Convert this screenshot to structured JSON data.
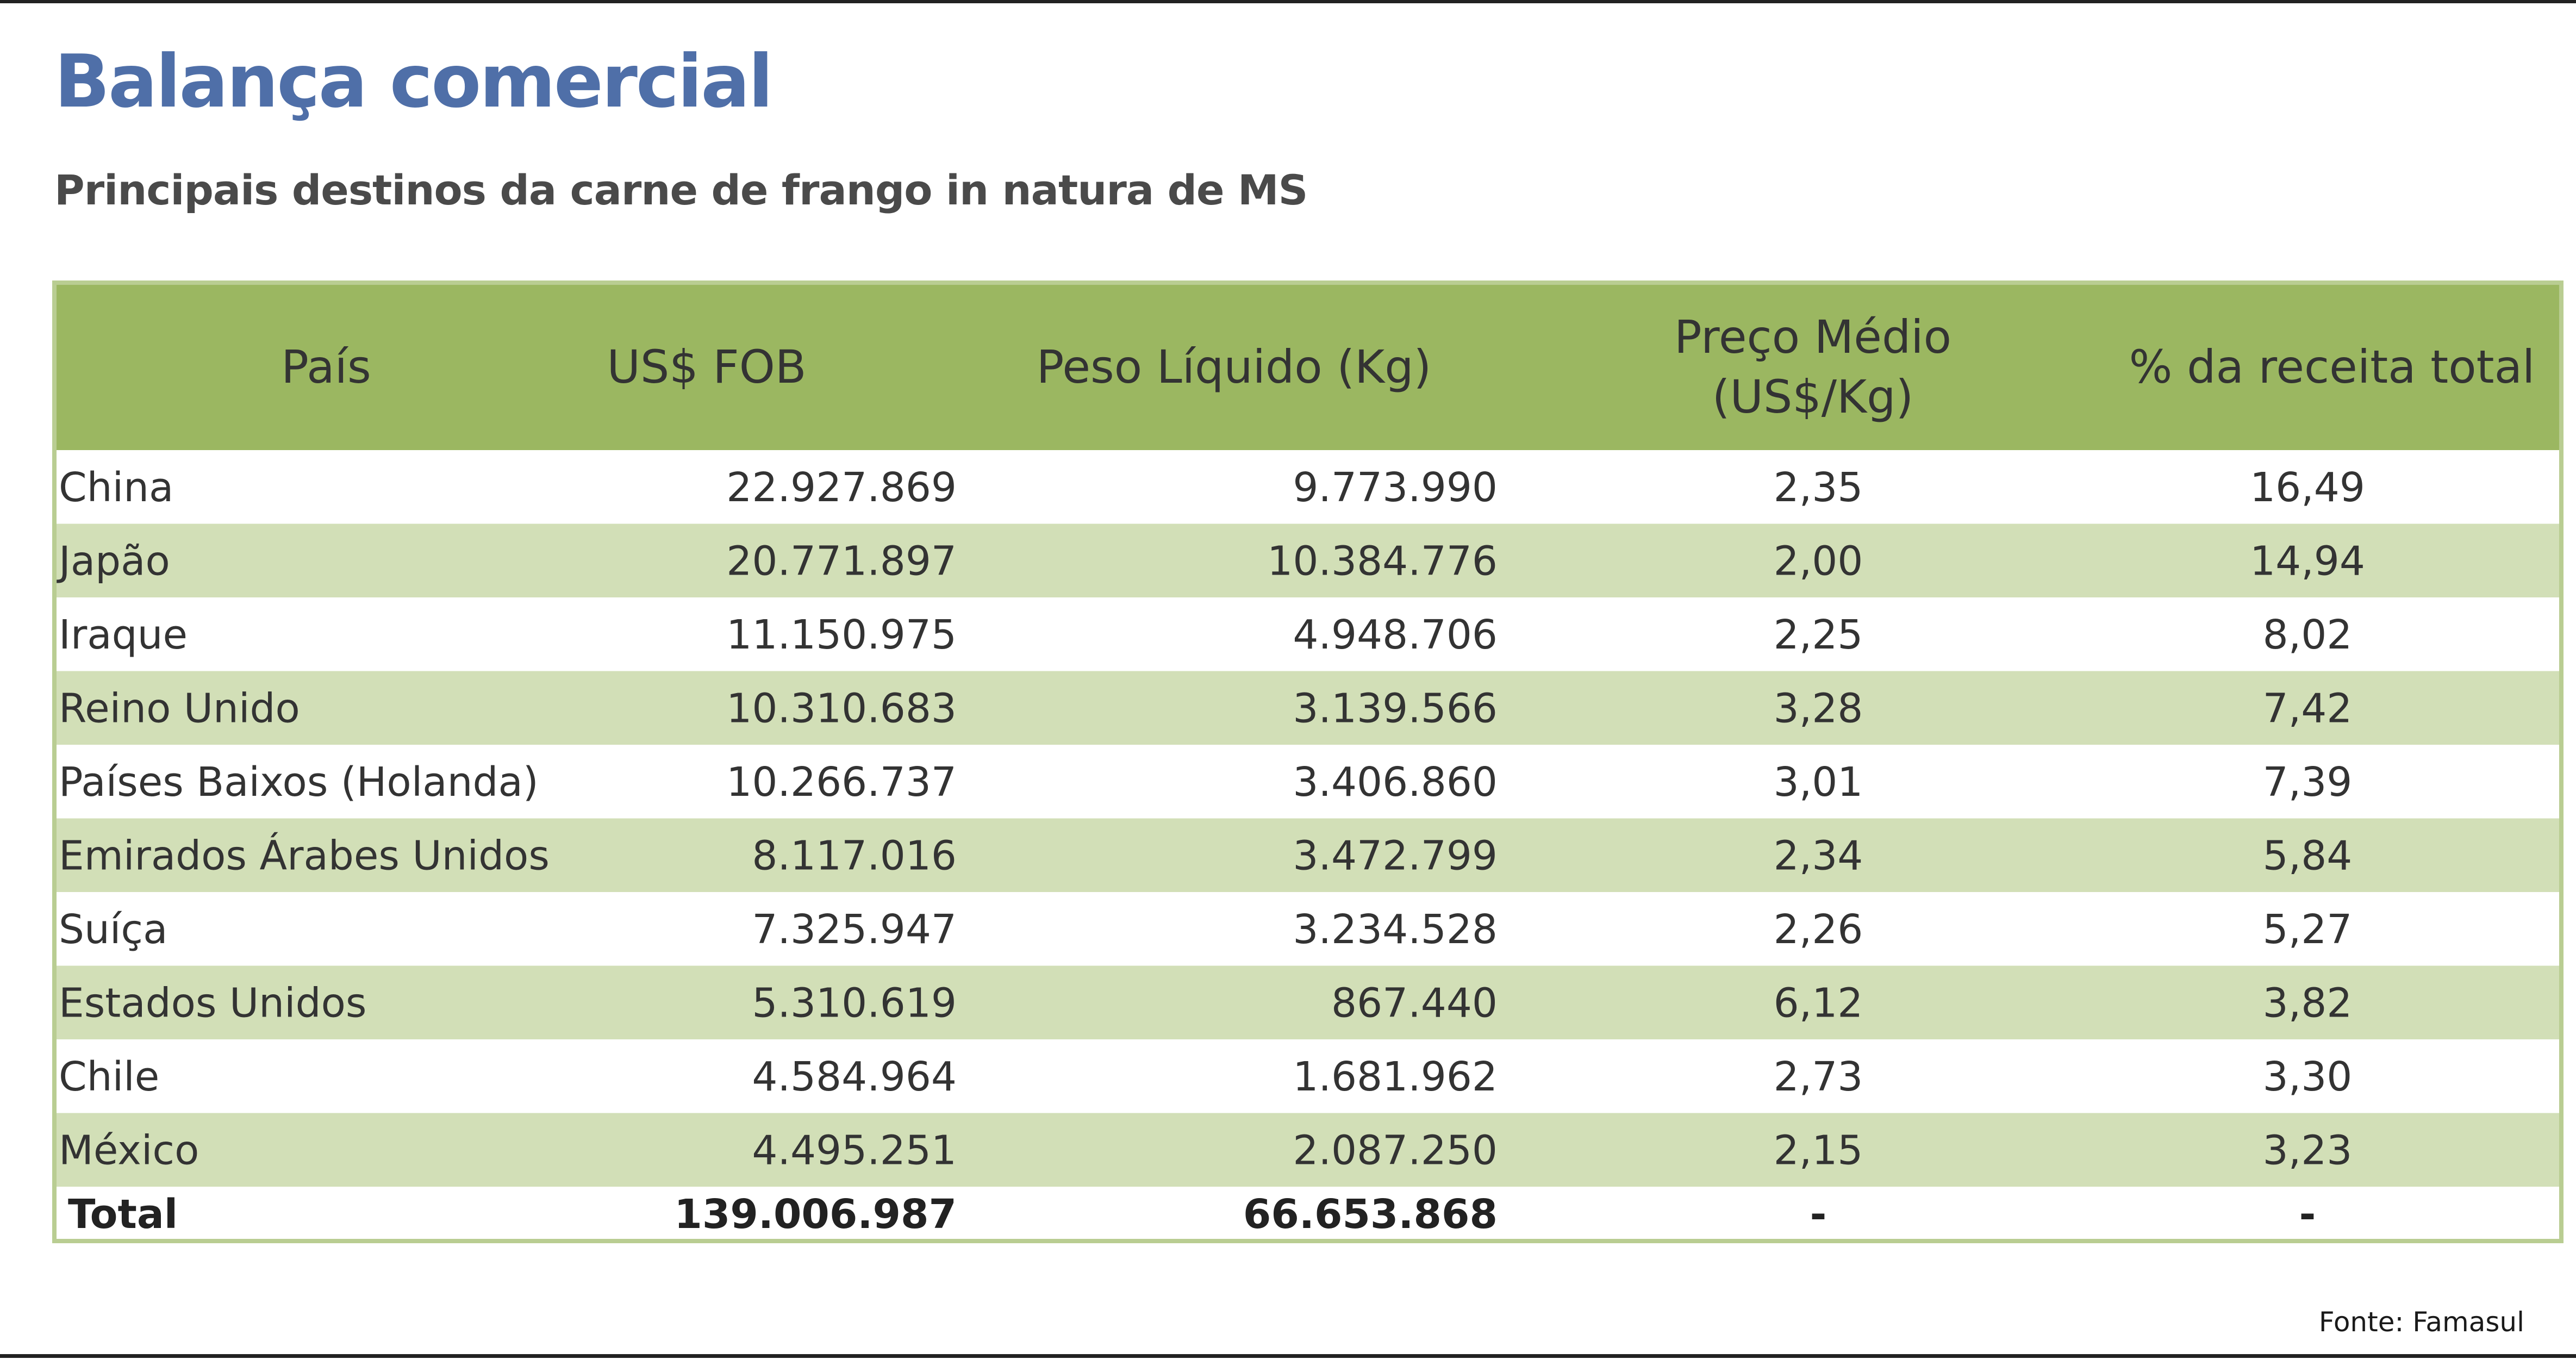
{
  "title": "Balança comercial",
  "subtitle": "Principais destinos da carne de frango in natura de MS",
  "source": "Fonte: Famasul",
  "colors": {
    "title": "#4f6fa8",
    "header_bg": "#9bb761",
    "band_bg": "#d2dfb7",
    "border": "#b9cd92",
    "text": "#333333"
  },
  "chart_data": {
    "type": "table",
    "columns": [
      [
        "País"
      ],
      [
        "US$ FOB"
      ],
      [
        "Peso Líquido (Kg)"
      ],
      [
        "Preço Médio",
        "(US$/Kg)"
      ],
      [
        "% da receita total"
      ]
    ],
    "rows": [
      [
        "China",
        "22.927.869",
        "9.773.990",
        "2,35",
        "16,49"
      ],
      [
        "Japão",
        "20.771.897",
        "10.384.776",
        "2,00",
        "14,94"
      ],
      [
        "Iraque",
        "11.150.975",
        "4.948.706",
        "2,25",
        "8,02"
      ],
      [
        "Reino Unido",
        "10.310.683",
        "3.139.566",
        "3,28",
        "7,42"
      ],
      [
        "Países Baixos (Holanda)",
        "10.266.737",
        "3.406.860",
        "3,01",
        "7,39"
      ],
      [
        "Emirados Árabes Unidos",
        "8.117.016",
        "3.472.799",
        "2,34",
        "5,84"
      ],
      [
        "Suíça",
        "7.325.947",
        "3.234.528",
        "2,26",
        "5,27"
      ],
      [
        "Estados Unidos",
        "5.310.619",
        "867.440",
        "6,12",
        "3,82"
      ],
      [
        "Chile",
        "4.584.964",
        "1.681.962",
        "2,73",
        "3,30"
      ],
      [
        "México",
        "4.495.251",
        "2.087.250",
        "2,15",
        "3,23"
      ]
    ],
    "total": [
      "Total",
      "139.006.987",
      "66.653.868",
      "-",
      "-"
    ]
  }
}
